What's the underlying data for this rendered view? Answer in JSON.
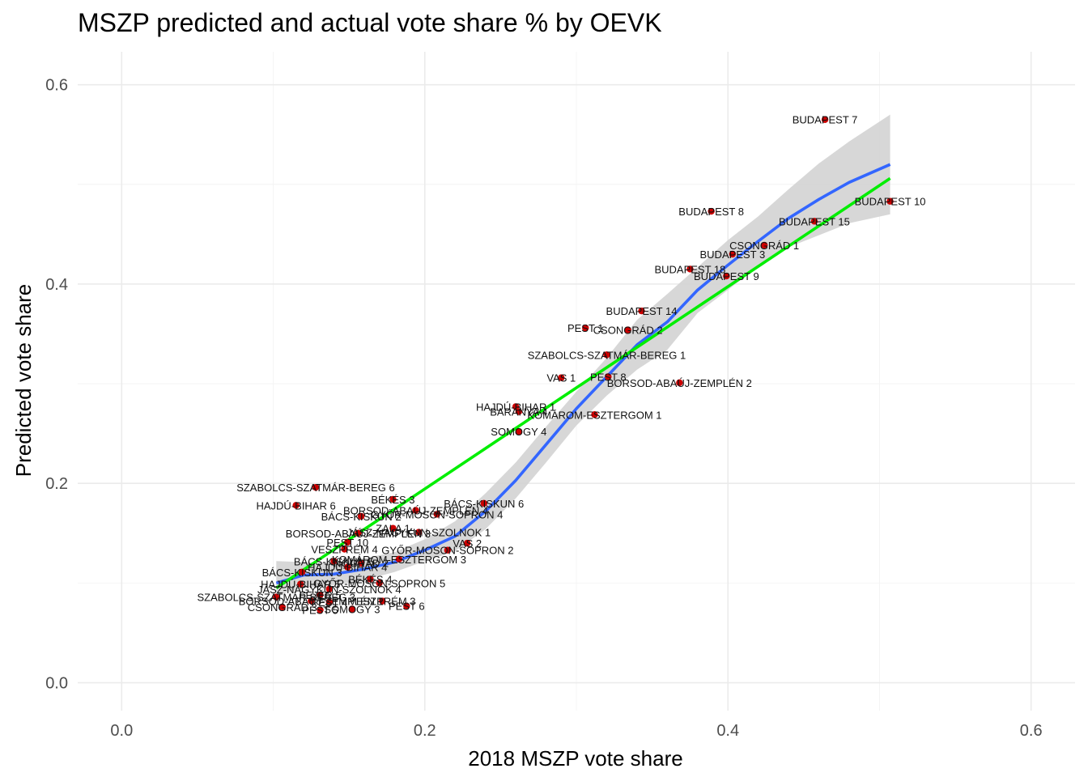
{
  "chart_data": {
    "type": "scatter",
    "title": "MSZP predicted and actual vote share % by OEVK",
    "xlabel": "2018 MSZP vote share",
    "ylabel": "Predicted vote share",
    "xlim": [
      -0.029,
      0.629
    ],
    "ylim": [
      -0.028,
      0.633
    ],
    "x_ticks": [
      0.0,
      0.2,
      0.4,
      0.6
    ],
    "x_tick_labels": [
      "0.0",
      "0.2",
      "0.4",
      "0.6"
    ],
    "y_ticks": [
      0.0,
      0.2,
      0.4,
      0.6
    ],
    "y_tick_labels": [
      "0.0",
      "0.2",
      "0.4",
      "0.6"
    ],
    "grid": true,
    "point_color": "#cc0000",
    "loess_color": "#3366ff",
    "linear_color": "#00ee00",
    "band_color": "#d3d3d3",
    "points": [
      {
        "label": "BUDAPEST 7",
        "x": 0.464,
        "y": 0.565
      },
      {
        "label": "BUDAPEST 10",
        "x": 0.507,
        "y": 0.483
      },
      {
        "label": "BUDAPEST 8",
        "x": 0.389,
        "y": 0.473
      },
      {
        "label": "BUDAPEST 15",
        "x": 0.457,
        "y": 0.463
      },
      {
        "label": "CSONGRÁD 1",
        "x": 0.424,
        "y": 0.439
      },
      {
        "label": "BUDAPEST 3",
        "x": 0.403,
        "y": 0.43
      },
      {
        "label": "BUDAPEST 18",
        "x": 0.375,
        "y": 0.415
      },
      {
        "label": "BUDAPEST 9",
        "x": 0.399,
        "y": 0.408
      },
      {
        "label": "BUDAPEST 14",
        "x": 0.343,
        "y": 0.373
      },
      {
        "label": "PEST 1",
        "x": 0.306,
        "y": 0.356
      },
      {
        "label": "CSONGRÁD 2",
        "x": 0.334,
        "y": 0.354
      },
      {
        "label": "SZABOLCS-SZATMÁR-BEREG 1",
        "x": 0.32,
        "y": 0.329
      },
      {
        "label": "VAS 1",
        "x": 0.29,
        "y": 0.306
      },
      {
        "label": "PEST 8",
        "x": 0.321,
        "y": 0.307
      },
      {
        "label": "BORSOD-ABAÚJ-ZEMPLÉN 2",
        "x": 0.368,
        "y": 0.301
      },
      {
        "label": "HAJDÚ-BIHAR 1",
        "x": 0.26,
        "y": 0.277
      },
      {
        "label": "BARANYA 4",
        "x": 0.262,
        "y": 0.272
      },
      {
        "label": "KOMÁROM-ESZTERGOM 1",
        "x": 0.312,
        "y": 0.269
      },
      {
        "label": "SOMOGY 4",
        "x": 0.262,
        "y": 0.252
      },
      {
        "label": "SZABOLCS-SZATMÁR-BEREG 6",
        "x": 0.128,
        "y": 0.196
      },
      {
        "label": "BÉKÉS 3",
        "x": 0.179,
        "y": 0.184
      },
      {
        "label": "BÁCS-KISKUN 6",
        "x": 0.239,
        "y": 0.18
      },
      {
        "label": "HAJDÚ-BIHAR 6",
        "x": 0.115,
        "y": 0.178
      },
      {
        "label": "BORSOD-ABAÚJ-ZEMPLÉN 4",
        "x": 0.194,
        "y": 0.173
      },
      {
        "label": "GYŐR-MOSON-SOPRON 4",
        "x": 0.208,
        "y": 0.169
      },
      {
        "label": "BÁCS-KISKUN 2",
        "x": 0.158,
        "y": 0.167
      },
      {
        "label": "ZALA 1",
        "x": 0.179,
        "y": 0.155
      },
      {
        "label": "JÁSZ-NAGYKUN-SZOLNOK 1",
        "x": 0.196,
        "y": 0.151
      },
      {
        "label": "BORSOD-ABAÚJ-ZEMPLÉN 3",
        "x": 0.156,
        "y": 0.15
      },
      {
        "label": "VAS 2",
        "x": 0.228,
        "y": 0.14
      },
      {
        "label": "PEST 10",
        "x": 0.149,
        "y": 0.141
      },
      {
        "label": "VESZPRÉM 4",
        "x": 0.147,
        "y": 0.134
      },
      {
        "label": "GYŐR-MOSON-SOPRON 2",
        "x": 0.215,
        "y": 0.133
      },
      {
        "label": "KOMÁROM-ESZTERGOM 3",
        "x": 0.183,
        "y": 0.124
      },
      {
        "label": "BÁCS-KISKUN 5",
        "x": 0.14,
        "y": 0.122
      },
      {
        "label": "NÓGRÁD 2",
        "x": 0.158,
        "y": 0.12
      },
      {
        "label": "HAJDÚ-BIHAR 4",
        "x": 0.149,
        "y": 0.116
      },
      {
        "label": "BÁCS-KISKUN 3",
        "x": 0.119,
        "y": 0.111
      },
      {
        "label": "BÉKÉS 4",
        "x": 0.164,
        "y": 0.104
      },
      {
        "label": "HAJDÚ-BIHAR 5",
        "x": 0.118,
        "y": 0.099
      },
      {
        "label": "GYŐR-MOSON-SOPRON 5",
        "x": 0.17,
        "y": 0.1
      },
      {
        "label": "JÁSZ-NAGYKUN-SZOLNOK 4",
        "x": 0.137,
        "y": 0.094
      },
      {
        "label": "FEJÉR 5",
        "x": 0.131,
        "y": 0.088
      },
      {
        "label": "SZABOLCS-SZATMÁR-BEREG 3",
        "x": 0.102,
        "y": 0.086
      },
      {
        "label": "BORSOD-ABAÚJ-ZEMPLÉN 1",
        "x": 0.125,
        "y": 0.082
      },
      {
        "label": "PEST 4",
        "x": 0.137,
        "y": 0.081
      },
      {
        "label": "VESZPRÉM 3",
        "x": 0.172,
        "y": 0.082
      },
      {
        "label": "CSONGRÁD 3",
        "x": 0.106,
        "y": 0.076
      },
      {
        "label": "PEST 5",
        "x": 0.131,
        "y": 0.073
      },
      {
        "label": "SOMOGY 3",
        "x": 0.152,
        "y": 0.074
      },
      {
        "label": "PEST 6",
        "x": 0.188,
        "y": 0.077
      }
    ],
    "loess_fit": {
      "x": [
        0.102,
        0.12,
        0.14,
        0.16,
        0.18,
        0.2,
        0.22,
        0.24,
        0.26,
        0.28,
        0.3,
        0.32,
        0.34,
        0.36,
        0.38,
        0.4,
        0.42,
        0.44,
        0.46,
        0.48,
        0.507
      ],
      "y": [
        0.1,
        0.108,
        0.109,
        0.114,
        0.121,
        0.133,
        0.147,
        0.172,
        0.203,
        0.239,
        0.275,
        0.307,
        0.339,
        0.362,
        0.394,
        0.419,
        0.443,
        0.466,
        0.485,
        0.502,
        0.52
      ],
      "upper": [
        0.122,
        0.121,
        0.12,
        0.125,
        0.131,
        0.144,
        0.162,
        0.19,
        0.221,
        0.257,
        0.292,
        0.326,
        0.364,
        0.39,
        0.417,
        0.444,
        0.468,
        0.495,
        0.521,
        0.543,
        0.57
      ],
      "lower": [
        0.088,
        0.095,
        0.098,
        0.103,
        0.111,
        0.122,
        0.132,
        0.154,
        0.185,
        0.221,
        0.258,
        0.288,
        0.314,
        0.334,
        0.371,
        0.394,
        0.418,
        0.437,
        0.449,
        0.461,
        0.47
      ]
    },
    "linear_fit": {
      "x": [
        0.102,
        0.507
      ],
      "y": [
        0.095,
        0.506
      ]
    }
  }
}
